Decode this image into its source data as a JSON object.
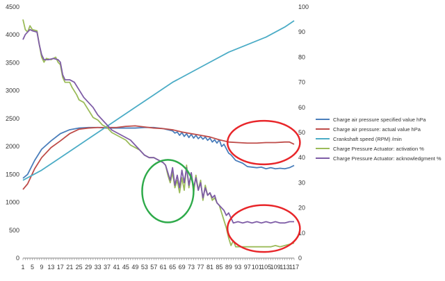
{
  "chart_data": {
    "type": "line",
    "title": "",
    "xlabel": "",
    "ylabel_left": "",
    "ylabel_right": "",
    "x_count": 117,
    "x_ticks": [
      "1",
      "5",
      "9",
      "13",
      "17",
      "21",
      "25",
      "29",
      "33",
      "37",
      "41",
      "45",
      "49",
      "53",
      "57",
      "61",
      "65",
      "69",
      "73",
      "77",
      "81",
      "85",
      "89",
      "93",
      "97",
      "101",
      "105",
      "109",
      "113",
      "117"
    ],
    "x_tick_values": [
      1,
      5,
      9,
      13,
      17,
      21,
      25,
      29,
      33,
      37,
      41,
      45,
      49,
      53,
      57,
      61,
      65,
      69,
      73,
      77,
      81,
      85,
      89,
      93,
      97,
      101,
      105,
      109,
      113,
      117
    ],
    "y_left": {
      "min": 0,
      "max": 4500,
      "ticks": [
        "0",
        "500",
        "1000",
        "1500",
        "2000",
        "2500",
        "3000",
        "3500",
        "4000",
        "4500"
      ]
    },
    "y_right": {
      "min": 0,
      "max": 100,
      "ticks": [
        "0",
        "10",
        "20",
        "30",
        "40",
        "50",
        "60",
        "70",
        "80",
        "90",
        "100"
      ]
    },
    "grid": false,
    "legend_position": "right",
    "series": [
      {
        "name": "Charge air pressure specified value  hPa",
        "axis": "left",
        "color": "#4a7ebb",
        "points": [
          [
            1,
            1430
          ],
          [
            3,
            1500
          ],
          [
            6,
            1750
          ],
          [
            9,
            1950
          ],
          [
            13,
            2100
          ],
          [
            17,
            2230
          ],
          [
            21,
            2300
          ],
          [
            25,
            2330
          ],
          [
            29,
            2340
          ],
          [
            33,
            2340
          ],
          [
            37,
            2330
          ],
          [
            41,
            2330
          ],
          [
            45,
            2330
          ],
          [
            49,
            2330
          ],
          [
            53,
            2340
          ],
          [
            57,
            2340
          ],
          [
            61,
            2320
          ],
          [
            63,
            2300
          ],
          [
            65,
            2280
          ],
          [
            66,
            2240
          ],
          [
            67,
            2260
          ],
          [
            68,
            2200
          ],
          [
            69,
            2250
          ],
          [
            70,
            2180
          ],
          [
            71,
            2230
          ],
          [
            72,
            2160
          ],
          [
            73,
            2220
          ],
          [
            74,
            2150
          ],
          [
            75,
            2200
          ],
          [
            76,
            2140
          ],
          [
            77,
            2180
          ],
          [
            78,
            2130
          ],
          [
            79,
            2170
          ],
          [
            80,
            2110
          ],
          [
            81,
            2150
          ],
          [
            82,
            2080
          ],
          [
            83,
            2120
          ],
          [
            84,
            2060
          ],
          [
            85,
            2120
          ],
          [
            86,
            2000
          ],
          [
            87,
            2040
          ],
          [
            88,
            1960
          ],
          [
            89,
            1880
          ],
          [
            90,
            1850
          ],
          [
            92,
            1750
          ],
          [
            95,
            1700
          ],
          [
            97,
            1640
          ],
          [
            101,
            1620
          ],
          [
            103,
            1630
          ],
          [
            105,
            1600
          ],
          [
            107,
            1620
          ],
          [
            109,
            1600
          ],
          [
            111,
            1610
          ],
          [
            113,
            1600
          ],
          [
            115,
            1620
          ],
          [
            117,
            1660
          ]
        ]
      },
      {
        "name": "Charge air pressure: actual value  hPa",
        "axis": "left",
        "color": "#be4b48",
        "points": [
          [
            1,
            1230
          ],
          [
            3,
            1330
          ],
          [
            6,
            1600
          ],
          [
            9,
            1800
          ],
          [
            13,
            1980
          ],
          [
            17,
            2100
          ],
          [
            21,
            2230
          ],
          [
            25,
            2310
          ],
          [
            29,
            2330
          ],
          [
            33,
            2340
          ],
          [
            37,
            2340
          ],
          [
            41,
            2340
          ],
          [
            45,
            2360
          ],
          [
            49,
            2370
          ],
          [
            53,
            2350
          ],
          [
            57,
            2330
          ],
          [
            61,
            2320
          ],
          [
            65,
            2300
          ],
          [
            69,
            2260
          ],
          [
            73,
            2230
          ],
          [
            77,
            2200
          ],
          [
            81,
            2170
          ],
          [
            85,
            2120
          ],
          [
            89,
            2080
          ],
          [
            93,
            2070
          ],
          [
            97,
            2060
          ],
          [
            101,
            2060
          ],
          [
            105,
            2070
          ],
          [
            109,
            2070
          ],
          [
            113,
            2080
          ],
          [
            115,
            2080
          ],
          [
            117,
            2040
          ]
        ]
      },
      {
        "name": "Crankshaft speed (RPM)  /min",
        "axis": "right",
        "color": "#4bacc6",
        "points": [
          [
            1,
            31
          ],
          [
            9,
            35
          ],
          [
            17,
            40
          ],
          [
            25,
            45
          ],
          [
            33,
            50
          ],
          [
            41,
            55
          ],
          [
            49,
            60
          ],
          [
            57,
            65
          ],
          [
            65,
            70
          ],
          [
            73,
            74
          ],
          [
            81,
            78
          ],
          [
            89,
            82
          ],
          [
            97,
            85
          ],
          [
            105,
            88
          ],
          [
            113,
            92
          ],
          [
            117,
            94.5
          ]
        ]
      },
      {
        "name": "Charge Pressure Actuator: activation  %",
        "axis": "right",
        "color": "#9bbb59",
        "points": [
          [
            1,
            95
          ],
          [
            2,
            91
          ],
          [
            3,
            90
          ],
          [
            4,
            92.5
          ],
          [
            5,
            91
          ],
          [
            7,
            90.5
          ],
          [
            8,
            85
          ],
          [
            9,
            80
          ],
          [
            10,
            78
          ],
          [
            11,
            79.5
          ],
          [
            13,
            79
          ],
          [
            15,
            80
          ],
          [
            16,
            78
          ],
          [
            17,
            77
          ],
          [
            18,
            72
          ],
          [
            19,
            70
          ],
          [
            21,
            70
          ],
          [
            22,
            68
          ],
          [
            24,
            65
          ],
          [
            25,
            63
          ],
          [
            27,
            62
          ],
          [
            29,
            59
          ],
          [
            31,
            56
          ],
          [
            33,
            55
          ],
          [
            35,
            53
          ],
          [
            37,
            52
          ],
          [
            39,
            50
          ],
          [
            41,
            49
          ],
          [
            43,
            48
          ],
          [
            45,
            47
          ],
          [
            47,
            45
          ],
          [
            49,
            44
          ],
          [
            51,
            43
          ],
          [
            53,
            41
          ],
          [
            55,
            40
          ],
          [
            57,
            40
          ],
          [
            59,
            39
          ],
          [
            61,
            38
          ],
          [
            62,
            37
          ],
          [
            63,
            33
          ],
          [
            64,
            30
          ],
          [
            65,
            34
          ],
          [
            66,
            28
          ],
          [
            67,
            31
          ],
          [
            68,
            26
          ],
          [
            69,
            32
          ],
          [
            70,
            27
          ],
          [
            71,
            37
          ],
          [
            72,
            28
          ],
          [
            73,
            34
          ],
          [
            74,
            26
          ],
          [
            75,
            33
          ],
          [
            76,
            27
          ],
          [
            77,
            31
          ],
          [
            78,
            23
          ],
          [
            79,
            29
          ],
          [
            80,
            25
          ],
          [
            81,
            26
          ],
          [
            82,
            23
          ],
          [
            83,
            24
          ],
          [
            84,
            22
          ],
          [
            85,
            21
          ],
          [
            86,
            18
          ],
          [
            87,
            15
          ],
          [
            88,
            12
          ],
          [
            89,
            8
          ],
          [
            90,
            5
          ],
          [
            91,
            7
          ],
          [
            92,
            4.5
          ],
          [
            95,
            4.5
          ],
          [
            99,
            4.5
          ],
          [
            103,
            4.5
          ],
          [
            107,
            4.5
          ],
          [
            109,
            5
          ],
          [
            111,
            4.5
          ],
          [
            113,
            5
          ],
          [
            115,
            5.5
          ],
          [
            117,
            6
          ]
        ]
      },
      {
        "name": "Charge Pressure Actuator: acknowledgment  %",
        "axis": "right",
        "color": "#7e5ca6",
        "points": [
          [
            1,
            87
          ],
          [
            2,
            89
          ],
          [
            3,
            90
          ],
          [
            4,
            91
          ],
          [
            5,
            90.5
          ],
          [
            7,
            90
          ],
          [
            8,
            85
          ],
          [
            9,
            81
          ],
          [
            10,
            79
          ],
          [
            12,
            79
          ],
          [
            14,
            79.5
          ],
          [
            16,
            79
          ],
          [
            17,
            78
          ],
          [
            18,
            73
          ],
          [
            19,
            71
          ],
          [
            21,
            71
          ],
          [
            23,
            70
          ],
          [
            25,
            67
          ],
          [
            27,
            64
          ],
          [
            29,
            62
          ],
          [
            31,
            60
          ],
          [
            33,
            57
          ],
          [
            35,
            55
          ],
          [
            37,
            53
          ],
          [
            39,
            51
          ],
          [
            41,
            50
          ],
          [
            43,
            49
          ],
          [
            45,
            48
          ],
          [
            47,
            47
          ],
          [
            49,
            45
          ],
          [
            51,
            43
          ],
          [
            53,
            41
          ],
          [
            55,
            40
          ],
          [
            57,
            40
          ],
          [
            59,
            39
          ],
          [
            61,
            38
          ],
          [
            62,
            37
          ],
          [
            63,
            34
          ],
          [
            64,
            31
          ],
          [
            65,
            36
          ],
          [
            66,
            29
          ],
          [
            67,
            33
          ],
          [
            68,
            28
          ],
          [
            69,
            35
          ],
          [
            70,
            30
          ],
          [
            71,
            36
          ],
          [
            72,
            29
          ],
          [
            73,
            34
          ],
          [
            74,
            28
          ],
          [
            75,
            32
          ],
          [
            76,
            27
          ],
          [
            77,
            30
          ],
          [
            78,
            24
          ],
          [
            79,
            28
          ],
          [
            80,
            25
          ],
          [
            81,
            26
          ],
          [
            82,
            24
          ],
          [
            83,
            25
          ],
          [
            84,
            22
          ],
          [
            85,
            21
          ],
          [
            86,
            20
          ],
          [
            87,
            19
          ],
          [
            88,
            17
          ],
          [
            89,
            18
          ],
          [
            90,
            16
          ],
          [
            91,
            14
          ],
          [
            93,
            14.5
          ],
          [
            95,
            14
          ],
          [
            97,
            14.5
          ],
          [
            99,
            14
          ],
          [
            101,
            14.5
          ],
          [
            103,
            14
          ],
          [
            105,
            14.5
          ],
          [
            107,
            14
          ],
          [
            109,
            14.5
          ],
          [
            111,
            14
          ],
          [
            113,
            14
          ],
          [
            115,
            14.5
          ],
          [
            117,
            14.5
          ]
        ]
      }
    ],
    "annotations": [
      {
        "shape": "ellipse",
        "color": "#2eaa4a",
        "cx": 63,
        "cy_left": 1200,
        "rx": 11,
        "ry_left": 560
      },
      {
        "shape": "ellipse",
        "color": "#e8262a",
        "cx": 104,
        "cy_left": 2070,
        "rx": 15.5,
        "ry_left": 390
      },
      {
        "shape": "ellipse",
        "color": "#e8262a",
        "cx": 104,
        "cy_left": 530,
        "rx": 15.5,
        "ry_left": 420
      }
    ]
  }
}
